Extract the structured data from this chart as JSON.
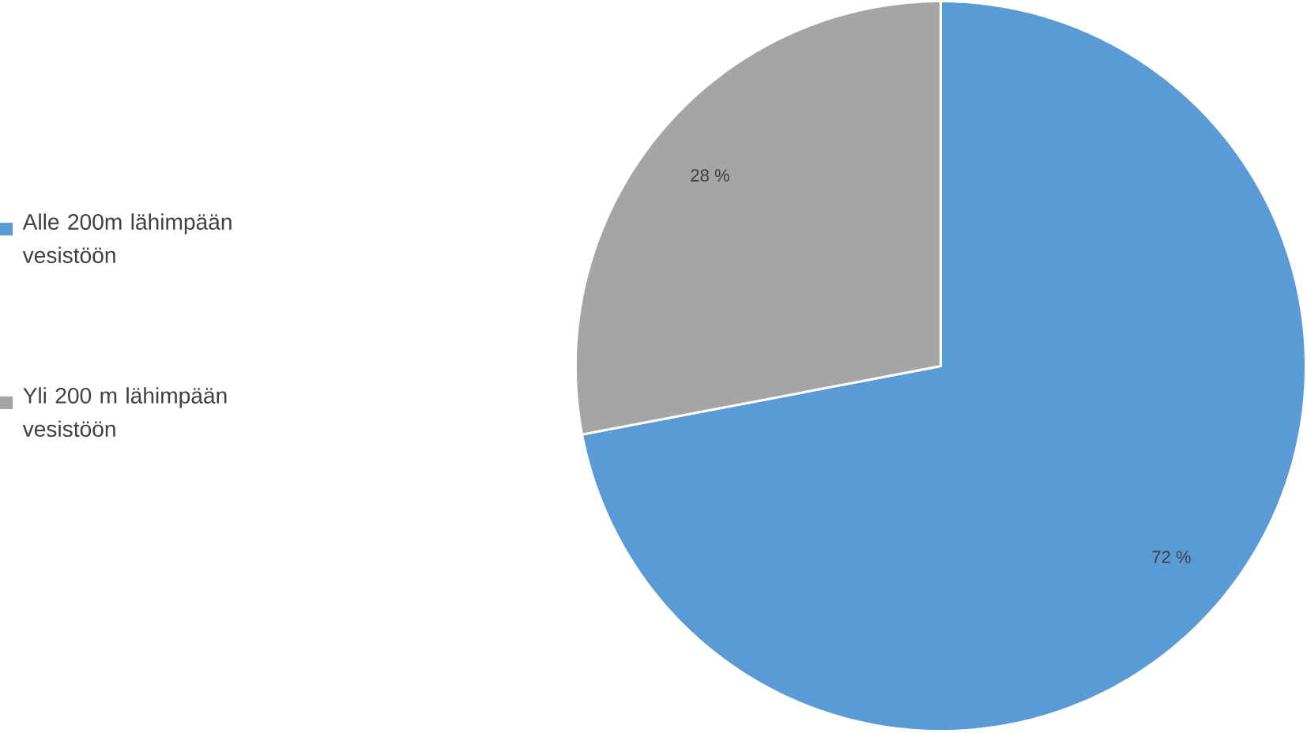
{
  "chart_data": {
    "type": "pie",
    "categories": [
      "Alle 200m lähimpään vesistöön",
      "Yli 200 m lähimpään vesistöön"
    ],
    "values": [
      72,
      28
    ],
    "colors": [
      "#5b9bd5",
      "#a5a5a5"
    ],
    "value_labels": [
      "72 %",
      "28 %"
    ],
    "legend": "left"
  }
}
